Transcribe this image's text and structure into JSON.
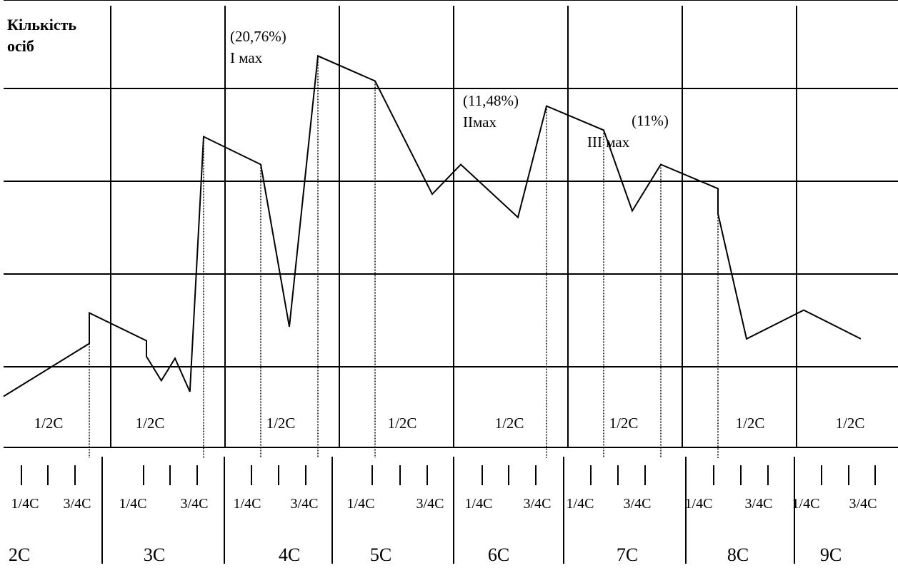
{
  "chart_data": {
    "type": "line",
    "y_label_lines": [
      "Кількість",
      "осіб"
    ],
    "half_class_label": "1/2C",
    "quarter_labels": [
      "1/4C",
      "3/4C"
    ],
    "classes": [
      "2C",
      "3C",
      "4C",
      "5C",
      "6C",
      "7C",
      "8C",
      "9C"
    ],
    "y_gridlines": 5,
    "grid": true,
    "series": [
      {
        "points": [
          {
            "x": 0.0,
            "y": 0.55
          },
          {
            "x": 0.75,
            "y": 1.12
          },
          {
            "x": 0.75,
            "y": 1.45
          },
          {
            "x": 1.25,
            "y": 1.15
          },
          {
            "x": 1.25,
            "y": 0.98
          },
          {
            "x": 1.38,
            "y": 0.72
          },
          {
            "x": 1.5,
            "y": 0.96
          },
          {
            "x": 1.63,
            "y": 0.6
          },
          {
            "x": 1.75,
            "y": 3.35
          },
          {
            "x": 2.25,
            "y": 3.05
          },
          {
            "x": 2.5,
            "y": 1.3
          },
          {
            "x": 2.75,
            "y": 4.22
          },
          {
            "x": 3.25,
            "y": 3.95
          },
          {
            "x": 3.75,
            "y": 2.73
          },
          {
            "x": 4.0,
            "y": 3.05
          },
          {
            "x": 4.5,
            "y": 2.48
          },
          {
            "x": 4.75,
            "y": 3.68
          },
          {
            "x": 5.25,
            "y": 3.42
          },
          {
            "x": 5.5,
            "y": 2.55
          },
          {
            "x": 5.75,
            "y": 3.05
          },
          {
            "x": 6.25,
            "y": 2.79
          },
          {
            "x": 6.25,
            "y": 2.52
          },
          {
            "x": 6.5,
            "y": 1.17
          },
          {
            "x": 7.0,
            "y": 1.48
          },
          {
            "x": 7.5,
            "y": 1.17
          }
        ]
      }
    ],
    "annotations": [
      {
        "lines": [
          "(20,76%)",
          "I мах"
        ]
      },
      {
        "lines": [
          "(11,48%)",
          "IIмах"
        ]
      },
      {
        "lines": [
          "(11%)",
          "III мах"
        ]
      }
    ]
  }
}
